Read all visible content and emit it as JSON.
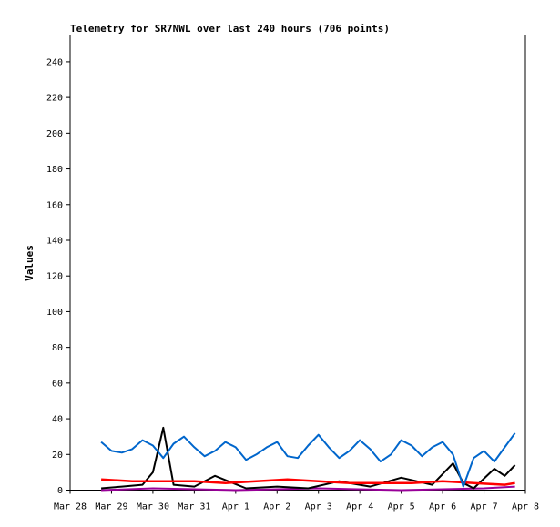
{
  "chart_data": {
    "type": "line",
    "title": "Telemetry for SR7NWL over last 240 hours (706 points)",
    "xlabel": "",
    "ylabel": "Values",
    "ylim": [
      0,
      255
    ],
    "yticks": [
      0,
      20,
      40,
      60,
      80,
      100,
      120,
      140,
      160,
      180,
      200,
      220,
      240
    ],
    "xlim": [
      "2024-03-28",
      "2024-04-08"
    ],
    "xticks": [
      {
        "date": "2024-03-28",
        "label": "Mar 28"
      },
      {
        "date": "2024-03-29",
        "label": "Mar 29"
      },
      {
        "date": "2024-03-30",
        "label": "Mar 30"
      },
      {
        "date": "2024-03-31",
        "label": "Mar 31"
      },
      {
        "date": "2024-04-01",
        "label": "Apr 1"
      },
      {
        "date": "2024-04-02",
        "label": "Apr 2"
      },
      {
        "date": "2024-04-03",
        "label": "Apr 3"
      },
      {
        "date": "2024-04-04",
        "label": "Apr 4"
      },
      {
        "date": "2024-04-05",
        "label": "Apr 5"
      },
      {
        "date": "2024-04-06",
        "label": "Apr 6"
      },
      {
        "date": "2024-04-07",
        "label": "Apr 7"
      },
      {
        "date": "2024-04-08",
        "label": "Apr 8"
      }
    ],
    "grid": false,
    "legend": false,
    "series": [
      {
        "color": "#0066cc",
        "x": [
          "2024-03-28 18:00",
          "2024-03-29 00:00",
          "2024-03-29 06:00",
          "2024-03-29 12:00",
          "2024-03-29 18:00",
          "2024-03-30 00:00",
          "2024-03-30 06:00",
          "2024-03-30 12:00",
          "2024-03-30 18:00",
          "2024-03-31 00:00",
          "2024-03-31 06:00",
          "2024-03-31 12:00",
          "2024-03-31 18:00",
          "2024-04-01 00:00",
          "2024-04-01 06:00",
          "2024-04-01 12:00",
          "2024-04-01 18:00",
          "2024-04-02 00:00",
          "2024-04-02 06:00",
          "2024-04-02 12:00",
          "2024-04-02 18:00",
          "2024-04-03 00:00",
          "2024-04-03 06:00",
          "2024-04-03 12:00",
          "2024-04-03 18:00",
          "2024-04-04 00:00",
          "2024-04-04 06:00",
          "2024-04-04 12:00",
          "2024-04-04 18:00",
          "2024-04-05 00:00",
          "2024-04-05 06:00",
          "2024-04-05 12:00",
          "2024-04-05 18:00",
          "2024-04-06 00:00",
          "2024-04-06 06:00",
          "2024-04-06 12:00",
          "2024-04-06 18:00",
          "2024-04-07 00:00",
          "2024-04-07 06:00",
          "2024-04-07 12:00",
          "2024-04-07 18:00"
        ],
        "y": [
          27,
          22,
          21,
          23,
          28,
          25,
          18,
          26,
          30,
          24,
          19,
          22,
          27,
          24,
          17,
          20,
          24,
          27,
          19,
          18,
          25,
          31,
          24,
          18,
          22,
          28,
          23,
          16,
          20,
          28,
          25,
          19,
          24,
          27,
          20,
          2,
          18,
          22,
          16,
          24,
          32
        ]
      },
      {
        "color": "#ff0000",
        "x": [
          "2024-03-28 18:00",
          "2024-03-29 12:00",
          "2024-03-30 06:00",
          "2024-03-31 00:00",
          "2024-03-31 18:00",
          "2024-04-01 12:00",
          "2024-04-02 06:00",
          "2024-04-03 00:00",
          "2024-04-03 18:00",
          "2024-04-04 12:00",
          "2024-04-05 06:00",
          "2024-04-06 00:00",
          "2024-04-06 18:00",
          "2024-04-07 12:00",
          "2024-04-07 18:00"
        ],
        "y": [
          6,
          5,
          5,
          5,
          4,
          5,
          6,
          5,
          4,
          4,
          4,
          5,
          4,
          3,
          4
        ]
      },
      {
        "color": "#000000",
        "x": [
          "2024-03-28 18:00",
          "2024-03-29 06:00",
          "2024-03-29 18:00",
          "2024-03-30 00:00",
          "2024-03-30 06:00",
          "2024-03-30 12:00",
          "2024-03-31 00:00",
          "2024-03-31 12:00",
          "2024-04-01 06:00",
          "2024-04-02 00:00",
          "2024-04-02 18:00",
          "2024-04-03 12:00",
          "2024-04-04 06:00",
          "2024-04-05 00:00",
          "2024-04-05 18:00",
          "2024-04-06 06:00",
          "2024-04-06 12:00",
          "2024-04-06 18:00",
          "2024-04-07 06:00",
          "2024-04-07 12:00",
          "2024-04-07 18:00"
        ],
        "y": [
          1,
          2,
          3,
          10,
          35,
          3,
          2,
          8,
          1,
          2,
          1,
          5,
          2,
          7,
          3,
          15,
          4,
          1,
          12,
          8,
          14
        ]
      },
      {
        "color": "#990099",
        "x": [
          "2024-03-28 18:00",
          "2024-03-30 00:00",
          "2024-04-01 00:00",
          "2024-04-03 00:00",
          "2024-04-05 00:00",
          "2024-04-07 00:00",
          "2024-04-07 18:00"
        ],
        "y": [
          0,
          1,
          0,
          1,
          0,
          1,
          2
        ]
      }
    ]
  }
}
